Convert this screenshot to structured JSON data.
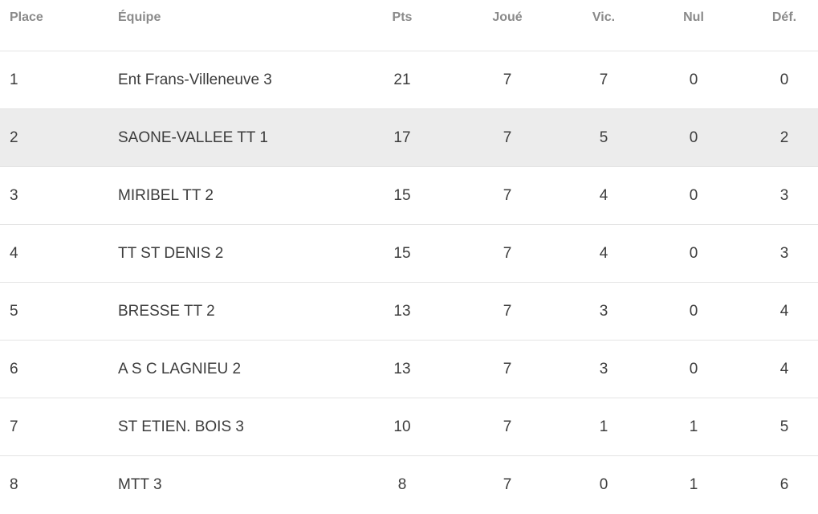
{
  "table": {
    "headers": {
      "place": "Place",
      "team": "Équipe",
      "pts": "Pts",
      "played": "Joué",
      "wins": "Vic.",
      "draws": "Nul",
      "losses": "Déf."
    },
    "highlight_color": "#ececec",
    "rows": [
      {
        "place": "1",
        "team": "Ent Frans-Villeneuve 3",
        "pts": "21",
        "played": "7",
        "wins": "7",
        "draws": "0",
        "losses": "0"
      },
      {
        "place": "2",
        "team": "SAONE-VALLEE TT 1",
        "pts": "17",
        "played": "7",
        "wins": "5",
        "draws": "0",
        "losses": "2"
      },
      {
        "place": "3",
        "team": "MIRIBEL TT 2",
        "pts": "15",
        "played": "7",
        "wins": "4",
        "draws": "0",
        "losses": "3"
      },
      {
        "place": "4",
        "team": "TT ST DENIS 2",
        "pts": "15",
        "played": "7",
        "wins": "4",
        "draws": "0",
        "losses": "3"
      },
      {
        "place": "5",
        "team": "BRESSE TT 2",
        "pts": "13",
        "played": "7",
        "wins": "3",
        "draws": "0",
        "losses": "4"
      },
      {
        "place": "6",
        "team": "A S C LAGNIEU 2",
        "pts": "13",
        "played": "7",
        "wins": "3",
        "draws": "0",
        "losses": "4"
      },
      {
        "place": "7",
        "team": "ST ETIEN. BOIS 3",
        "pts": "10",
        "played": "7",
        "wins": "1",
        "draws": "1",
        "losses": "5"
      },
      {
        "place": "8",
        "team": "MTT 3",
        "pts": "8",
        "played": "7",
        "wins": "0",
        "draws": "1",
        "losses": "6"
      }
    ]
  }
}
